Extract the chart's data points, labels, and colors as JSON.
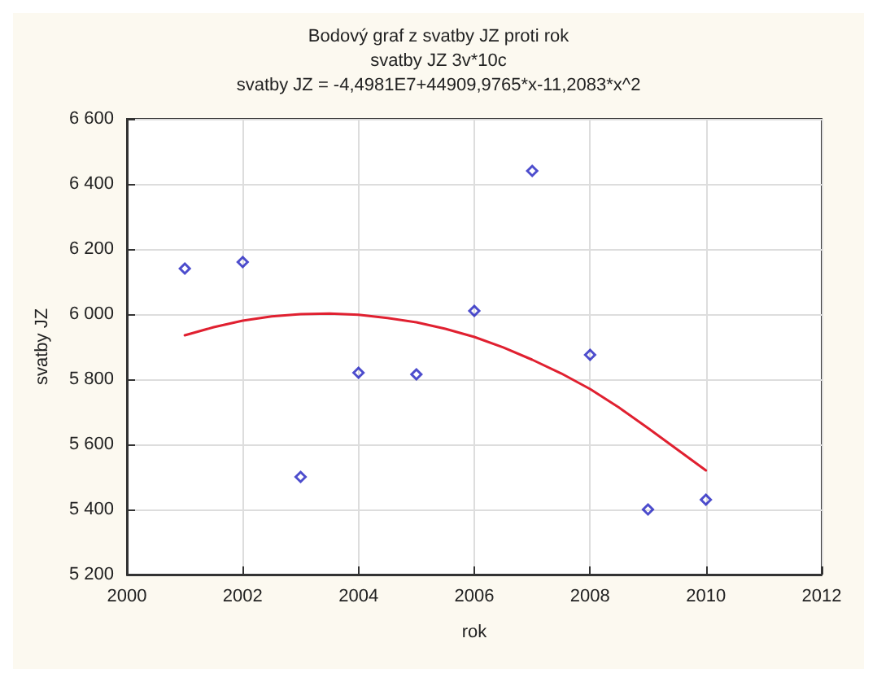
{
  "chart_data": {
    "type": "scatter",
    "title": "Bodový graf z svatby JZ proti rok",
    "subtitle": "svatby JZ 3v*10c\nsvatby JZ = -4,4981E7+44909,9765*x-11,2083*x^2",
    "xlabel": "rok",
    "ylabel": "svatby JZ",
    "xlim": [
      2000,
      2012
    ],
    "xticks": [
      2000,
      2002,
      2004,
      2006,
      2008,
      2010,
      2012
    ],
    "ylim": [
      5200,
      6600
    ],
    "yticks": [
      {
        "value": 5200,
        "label": "5 200"
      },
      {
        "value": 5400,
        "label": "5 400"
      },
      {
        "value": 5600,
        "label": "5 600"
      },
      {
        "value": 5800,
        "label": "5 800"
      },
      {
        "value": 6000,
        "label": "6 000"
      },
      {
        "value": 6200,
        "label": "6 200"
      },
      {
        "value": 6400,
        "label": "6 400"
      },
      {
        "value": 6600,
        "label": "6 600"
      }
    ],
    "grid": true,
    "series": [
      {
        "color": "#2020c0",
        "marker": "diamond",
        "x": [
          2001,
          2002,
          2003,
          2004,
          2005,
          2006,
          2007,
          2008,
          2009,
          2010
        ],
        "values": [
          6140,
          6160,
          5500,
          5820,
          5815,
          6010,
          6440,
          5875,
          5400,
          5430
        ]
      },
      {
        "type": "line",
        "color": "#e02030",
        "marker": "none",
        "line_style": "solid",
        "x": [
          2001,
          2001.5,
          2002,
          2002.5,
          2003,
          2003.5,
          2004,
          2004.5,
          2005,
          2005.5,
          2006,
          2006.5,
          2007,
          2007.5,
          2008,
          2008.5,
          2009,
          2009.5,
          2010
        ],
        "values": [
          5935,
          5960,
          5980,
          5993,
          6000,
          6002,
          5998,
          5988,
          5975,
          5955,
          5930,
          5898,
          5860,
          5818,
          5770,
          5713,
          5650,
          5585,
          5520
        ]
      }
    ]
  }
}
